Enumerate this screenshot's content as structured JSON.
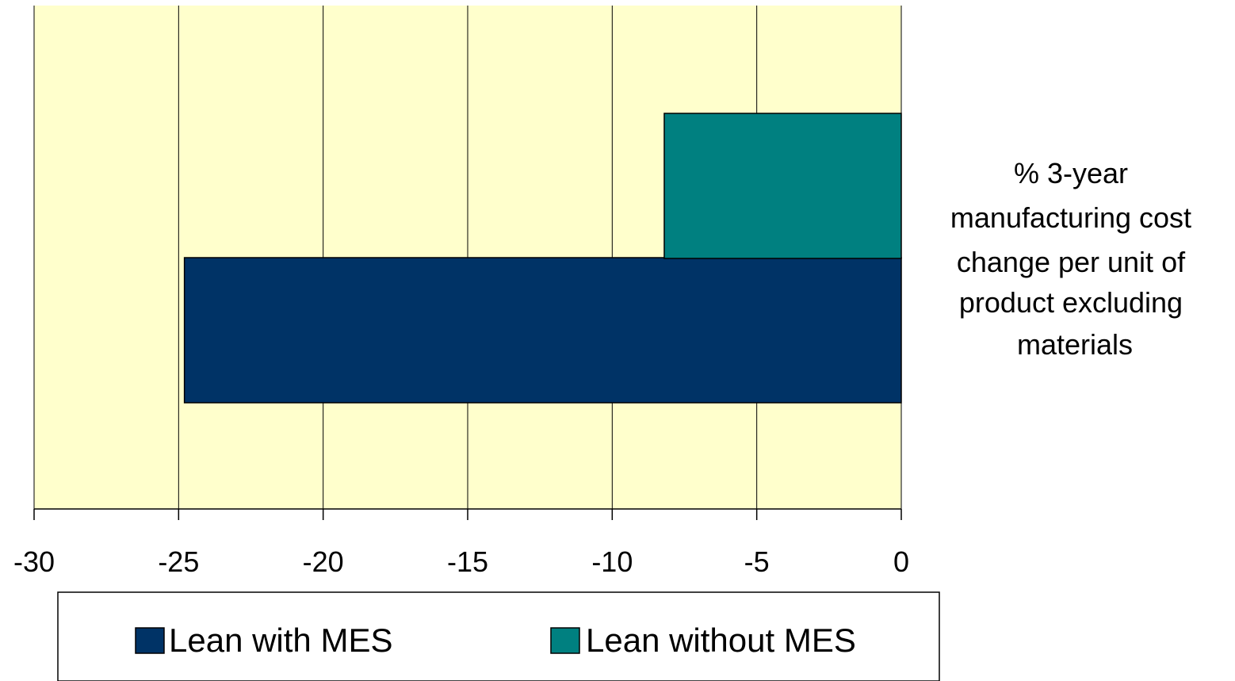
{
  "chart_data": {
    "type": "bar",
    "orientation": "horizontal",
    "categories": [
      ""
    ],
    "series": [
      {
        "name": "Lean with MES",
        "values": [
          -24.8
        ],
        "color": "#003366"
      },
      {
        "name": "Lean without MES",
        "values": [
          -8.2
        ],
        "color": "#008080"
      }
    ],
    "xlim": [
      -30,
      0
    ],
    "xticks": [
      "-30",
      "-25",
      "-20",
      "-15",
      "-10",
      "-5",
      "0"
    ],
    "side_label": [
      "% 3-year",
      "manufacturing cost",
      "change per unit of",
      "product excluding",
      "materials"
    ],
    "grid": true,
    "plot_background": "#ffffcc",
    "legend_position": "bottom"
  }
}
